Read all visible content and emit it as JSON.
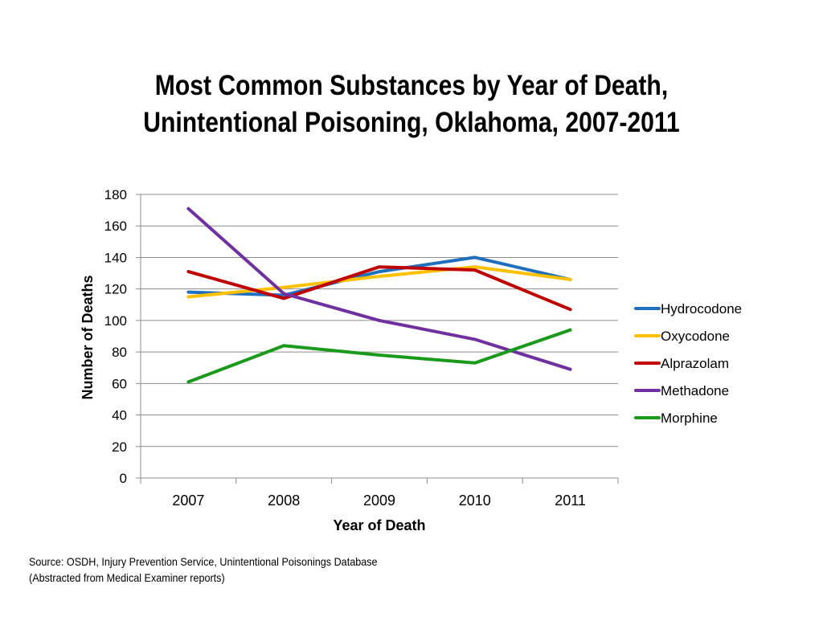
{
  "title_lines": [
    "Most Common Substances by Year of Death,",
    "Unintentional Poisoning, Oklahoma, 2007-2011"
  ],
  "source_lines": [
    "Source: OSDH, Injury Prevention Service, Unintentional Poisonings Database",
    "(Abstracted from Medical Examiner reports)"
  ],
  "chart_data": {
    "type": "line",
    "title": "Most Common Substances by Year of Death, Unintentional Poisoning, Oklahoma, 2007-2011",
    "xlabel": "Year of Death",
    "ylabel": "Number of Deaths",
    "categories": [
      "2007",
      "2008",
      "2009",
      "2010",
      "2011"
    ],
    "ylim": [
      0,
      180
    ],
    "yticks": [
      0,
      20,
      40,
      60,
      80,
      100,
      120,
      140,
      160,
      180
    ],
    "grid": true,
    "legend": "right",
    "series": [
      {
        "name": "Hydrocodone",
        "color": "#1f6fbf",
        "values": [
          118,
          116,
          131,
          140,
          126
        ]
      },
      {
        "name": "Oxycodone",
        "color": "#ffc000",
        "values": [
          115,
          121,
          128,
          134,
          126
        ]
      },
      {
        "name": "Alprazolam",
        "color": "#c00000",
        "values": [
          131,
          114,
          134,
          132,
          107
        ]
      },
      {
        "name": "Methadone",
        "color": "#7030a0",
        "values": [
          171,
          117,
          100,
          88,
          69
        ]
      },
      {
        "name": "Morphine",
        "color": "#1a9a1a",
        "values": [
          61,
          84,
          78,
          73,
          94
        ]
      }
    ]
  }
}
